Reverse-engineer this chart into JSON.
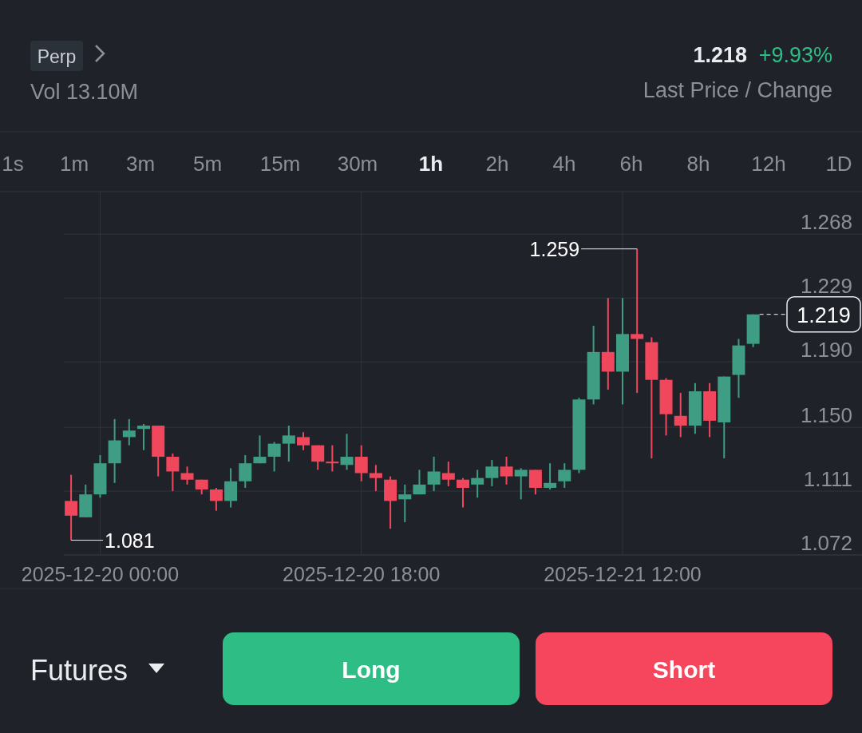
{
  "chart_data": {
    "type": "candlestick",
    "x": [
      "2025-12-19T22:00",
      "2025-12-19T23:00",
      "2025-12-20T00:00",
      "2025-12-20T01:00",
      "2025-12-20T02:00",
      "2025-12-20T03:00",
      "2025-12-20T04:00",
      "2025-12-20T05:00",
      "2025-12-20T06:00",
      "2025-12-20T07:00",
      "2025-12-20T08:00",
      "2025-12-20T09:00",
      "2025-12-20T10:00",
      "2025-12-20T11:00",
      "2025-12-20T12:00",
      "2025-12-20T13:00",
      "2025-12-20T14:00",
      "2025-12-20T15:00",
      "2025-12-20T16:00",
      "2025-12-20T17:00",
      "2025-12-20T18:00",
      "2025-12-20T19:00",
      "2025-12-20T20:00",
      "2025-12-20T21:00",
      "2025-12-20T22:00",
      "2025-12-20T23:00",
      "2025-12-21T00:00",
      "2025-12-21T01:00",
      "2025-12-21T02:00",
      "2025-12-21T03:00",
      "2025-12-21T04:00",
      "2025-12-21T05:00",
      "2025-12-21T06:00",
      "2025-12-21T07:00",
      "2025-12-21T08:00",
      "2025-12-21T09:00",
      "2025-12-21T10:00",
      "2025-12-21T11:00",
      "2025-12-21T12:00",
      "2025-12-21T13:00",
      "2025-12-21T14:00",
      "2025-12-21T15:00",
      "2025-12-21T16:00",
      "2025-12-21T17:00",
      "2025-12-21T18:00",
      "2025-12-21T19:00",
      "2025-12-21T20:00",
      "2025-12-21T21:00"
    ],
    "ohlc": [
      [
        1.105,
        1.121,
        1.081,
        1.096
      ],
      [
        1.095,
        1.115,
        1.095,
        1.109
      ],
      [
        1.109,
        1.133,
        1.107,
        1.128
      ],
      [
        1.128,
        1.155,
        1.116,
        1.142
      ],
      [
        1.144,
        1.155,
        1.139,
        1.148
      ],
      [
        1.149,
        1.152,
        1.136,
        1.151
      ],
      [
        1.151,
        1.151,
        1.12,
        1.132
      ],
      [
        1.132,
        1.134,
        1.111,
        1.123
      ],
      [
        1.122,
        1.126,
        1.115,
        1.118
      ],
      [
        1.118,
        1.118,
        1.109,
        1.112
      ],
      [
        1.112,
        1.113,
        1.099,
        1.105
      ],
      [
        1.105,
        1.125,
        1.101,
        1.117
      ],
      [
        1.117,
        1.133,
        1.113,
        1.128
      ],
      [
        1.128,
        1.145,
        1.128,
        1.132
      ],
      [
        1.132,
        1.141,
        1.123,
        1.14
      ],
      [
        1.14,
        1.151,
        1.129,
        1.145
      ],
      [
        1.144,
        1.147,
        1.136,
        1.139
      ],
      [
        1.139,
        1.139,
        1.124,
        1.129
      ],
      [
        1.129,
        1.139,
        1.123,
        1.128
      ],
      [
        1.127,
        1.146,
        1.124,
        1.132
      ],
      [
        1.132,
        1.139,
        1.117,
        1.122
      ],
      [
        1.122,
        1.127,
        1.111,
        1.119
      ],
      [
        1.118,
        1.12,
        1.088,
        1.105
      ],
      [
        1.106,
        1.115,
        1.092,
        1.109
      ],
      [
        1.109,
        1.124,
        1.109,
        1.115
      ],
      [
        1.115,
        1.132,
        1.111,
        1.123
      ],
      [
        1.122,
        1.129,
        1.114,
        1.118
      ],
      [
        1.118,
        1.119,
        1.101,
        1.113
      ],
      [
        1.115,
        1.124,
        1.107,
        1.119
      ],
      [
        1.119,
        1.13,
        1.114,
        1.126
      ],
      [
        1.126,
        1.132,
        1.115,
        1.12
      ],
      [
        1.12,
        1.125,
        1.106,
        1.124
      ],
      [
        1.124,
        1.124,
        1.109,
        1.113
      ],
      [
        1.113,
        1.128,
        1.112,
        1.116
      ],
      [
        1.117,
        1.128,
        1.113,
        1.124
      ],
      [
        1.124,
        1.168,
        1.122,
        1.167
      ],
      [
        1.167,
        1.212,
        1.164,
        1.196
      ],
      [
        1.196,
        1.229,
        1.173,
        1.184
      ],
      [
        1.184,
        1.229,
        1.164,
        1.207
      ],
      [
        1.207,
        1.259,
        1.171,
        1.204
      ],
      [
        1.202,
        1.205,
        1.131,
        1.179
      ],
      [
        1.179,
        1.18,
        1.145,
        1.158
      ],
      [
        1.157,
        1.171,
        1.144,
        1.151
      ],
      [
        1.151,
        1.177,
        1.146,
        1.172
      ],
      [
        1.172,
        1.177,
        1.144,
        1.154
      ],
      [
        1.153,
        1.181,
        1.131,
        1.181
      ],
      [
        1.182,
        1.204,
        1.168,
        1.2
      ],
      [
        1.201,
        1.219,
        1.199,
        1.219
      ]
    ],
    "xlim": [
      "2025-12-19T21:30",
      "2025-12-22T04:30"
    ],
    "ylim": [
      1.072,
      1.294
    ],
    "xticks": [
      {
        "value": "2025-12-20T00:00",
        "label": "2025-12-20 00:00"
      },
      {
        "value": "2025-12-20T18:00",
        "label": "2025-12-20 18:00"
      },
      {
        "value": "2025-12-21T12:00",
        "label": "2025-12-21 12:00"
      }
    ],
    "yticks": [
      1.072,
      1.111,
      {
        "value": 1.15,
        "label": "1.150"
      },
      {
        "value": 1.19,
        "label": "1.190"
      },
      1.229,
      1.268
    ],
    "grid": true,
    "ref_lines": [
      {
        "axis": "y",
        "value": 1.219,
        "label": "1.219",
        "line_style": "dashed"
      }
    ],
    "annotations": [
      {
        "text": "1.259",
        "x": "2025-12-21T13:00",
        "y": 1.259
      },
      {
        "text": "1.081",
        "x": "2025-12-19T22:00",
        "y": 1.081
      },
      "Perp",
      "Vol 13.10M",
      "1.218",
      "+9.93%",
      "Last Price / Change",
      "1s",
      "1m",
      "3m",
      "5m",
      "15m",
      "30m",
      "1h",
      "2h",
      "4h",
      "6h",
      "8h",
      "12h",
      "1D",
      "Futures",
      "Long",
      "Short"
    ]
  }
}
